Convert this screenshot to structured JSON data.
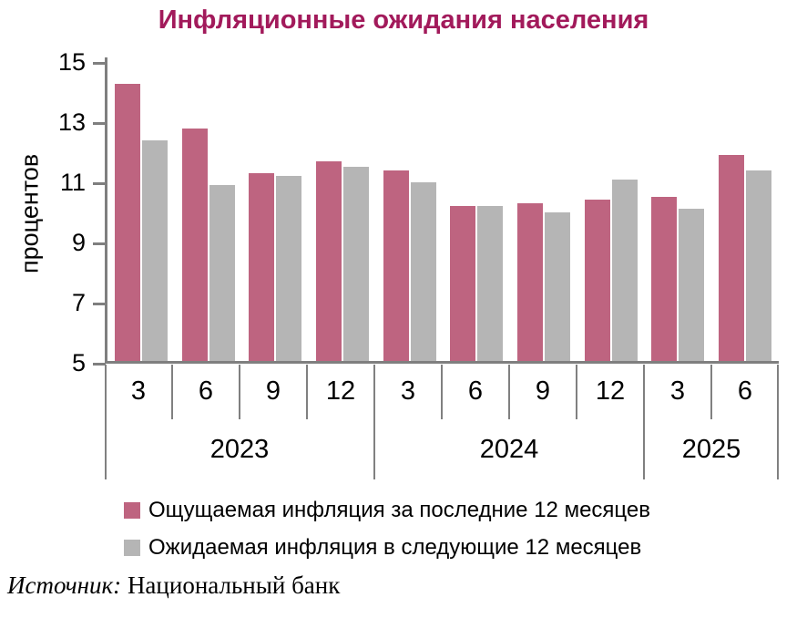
{
  "chart_data": {
    "type": "bar",
    "title": "Инфляционные ожидания населения",
    "ylabel": "процентов",
    "xlabel": "",
    "ylim": [
      5,
      15
    ],
    "yticks": [
      15,
      13,
      11,
      9,
      7,
      5
    ],
    "grid": false,
    "legend_position": "bottom",
    "categories": [
      "3",
      "6",
      "9",
      "12",
      "3",
      "6",
      "9",
      "12",
      "3",
      "6"
    ],
    "year_groups": [
      {
        "label": "2023",
        "span": 4
      },
      {
        "label": "2024",
        "span": 4
      },
      {
        "label": "2025",
        "span": 2
      }
    ],
    "series": [
      {
        "name": "Ощущаемая инфляция за последние 12 месяцев",
        "color": "#BE6480",
        "values": [
          14.3,
          12.8,
          11.3,
          11.7,
          11.4,
          10.2,
          10.3,
          10.4,
          10.5,
          11.9
        ]
      },
      {
        "name": "Ожидаемая инфляция в следующие 12 месяцев",
        "color": "#B5B5B5",
        "values": [
          12.4,
          10.9,
          11.2,
          11.5,
          11.0,
          10.2,
          10.0,
          11.1,
          10.1,
          11.4
        ]
      }
    ]
  },
  "source": {
    "prefix": "Источник:",
    "text": "Национальный банк"
  },
  "colors": {
    "title": "#A21A5B",
    "axis": "#7F7F7F",
    "bar_perceived": "#BE6480",
    "bar_expected": "#B5B5B5"
  }
}
